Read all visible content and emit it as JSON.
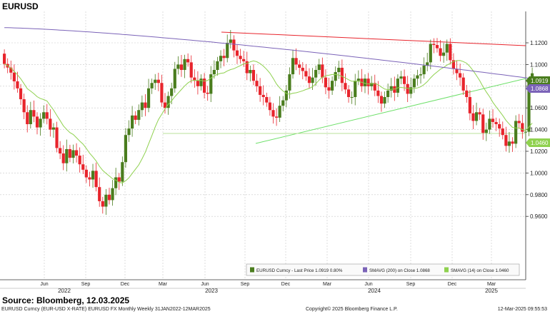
{
  "title": "EURUSD",
  "source_text": "Source: Bloomberg, 12.03.2025",
  "footer": {
    "left": "EURUSD Curncy (EUR-USD X-RATE) EURUSD FX Monthly  Weekly 31JAN2022-12MAR2025",
    "middle": "Copyright© 2025 Bloomberg Finance L.P.",
    "right": "12-Mar-2025 09:55:53"
  },
  "legend_items": [
    {
      "label": "EURUSD Curncy - Last Price  1.0919  0.80%",
      "color": "#4a7d1e"
    },
    {
      "label": "SMAVG (200)  on Close  1.0868",
      "color": "#7b63b8"
    },
    {
      "label": "SMAVG (14)  on Close  1.0460",
      "color": "#8fd14f"
    }
  ],
  "colors": {
    "up": "#4a7d1e",
    "down": "#e8242c",
    "sma200": "#7b63b8",
    "sma14": "#8fd14f",
    "resistance": "#e8242c",
    "support": "#6ee06a"
  },
  "chart_data": {
    "type": "candlestick",
    "title": "EURUSD",
    "period": "Weekly",
    "y_ticks": [
      "1.1200",
      "1.1000",
      "1.0800",
      "1.0600",
      "1.0400",
      "1.0200",
      "1.0000",
      "0.9800",
      "0.9600"
    ],
    "ylim": [
      0.948,
      1.138
    ],
    "x_month_ticks": [
      "Jun",
      "Sep",
      "Dec",
      "Mar",
      "Jun",
      "Sep",
      "Dec",
      "Mar",
      "Jun",
      "Sep",
      "Dec",
      "Mar"
    ],
    "x_year_labels": [
      "2022",
      "2023",
      "2024",
      "2025"
    ],
    "last_price": "1.0919",
    "sma200_last": "1.0868",
    "sma14_last": "1.0460",
    "closes": [
      1.1005,
      1.0972,
      1.0925,
      1.0845,
      1.078,
      1.068,
      1.056,
      1.045,
      1.058,
      1.052,
      1.042,
      1.05,
      1.056,
      1.05,
      1.04,
      1.042,
      1.023,
      1.018,
      1.009,
      1.022,
      1.014,
      1.021,
      1.016,
      1.008,
      1.003,
      0.996,
      0.994,
      1.002,
      0.987,
      0.974,
      0.969,
      0.98,
      0.975,
      0.986,
      0.996,
      0.992,
      1.01,
      1.035,
      1.041,
      1.053,
      1.049,
      1.058,
      1.065,
      1.06,
      1.078,
      1.083,
      1.086,
      1.083,
      1.065,
      1.06,
      1.071,
      1.078,
      1.096,
      1.1,
      1.095,
      1.105,
      1.102,
      1.088,
      1.085,
      1.08,
      1.087,
      1.074,
      1.073,
      1.091,
      1.095,
      1.103,
      1.108,
      1.106,
      1.12,
      1.123,
      1.113,
      1.108,
      1.105,
      1.103,
      1.092,
      1.095,
      1.085,
      1.08,
      1.072,
      1.07,
      1.065,
      1.058,
      1.052,
      1.051,
      1.062,
      1.067,
      1.076,
      1.091,
      1.106,
      1.1,
      1.097,
      1.094,
      1.089,
      1.083,
      1.088,
      1.095,
      1.1,
      1.088,
      1.079,
      1.076,
      1.085,
      1.093,
      1.097,
      1.083,
      1.077,
      1.07,
      1.07,
      1.085,
      1.087,
      1.08,
      1.087,
      1.08,
      1.083,
      1.076,
      1.071,
      1.064,
      1.07,
      1.076,
      1.08,
      1.074,
      1.087,
      1.089,
      1.082,
      1.073,
      1.079,
      1.087,
      1.09,
      1.091,
      1.099,
      1.102,
      1.119,
      1.118,
      1.115,
      1.108,
      1.111,
      1.119,
      1.104,
      1.096,
      1.092,
      1.088,
      1.076,
      1.07,
      1.055,
      1.048,
      1.056,
      1.054,
      1.037,
      1.04,
      1.05,
      1.047,
      1.045,
      1.041,
      1.035,
      1.025,
      1.029,
      1.027,
      1.048,
      1.046,
      1.038,
      1.038,
      1.084,
      1.0919
    ]
  }
}
